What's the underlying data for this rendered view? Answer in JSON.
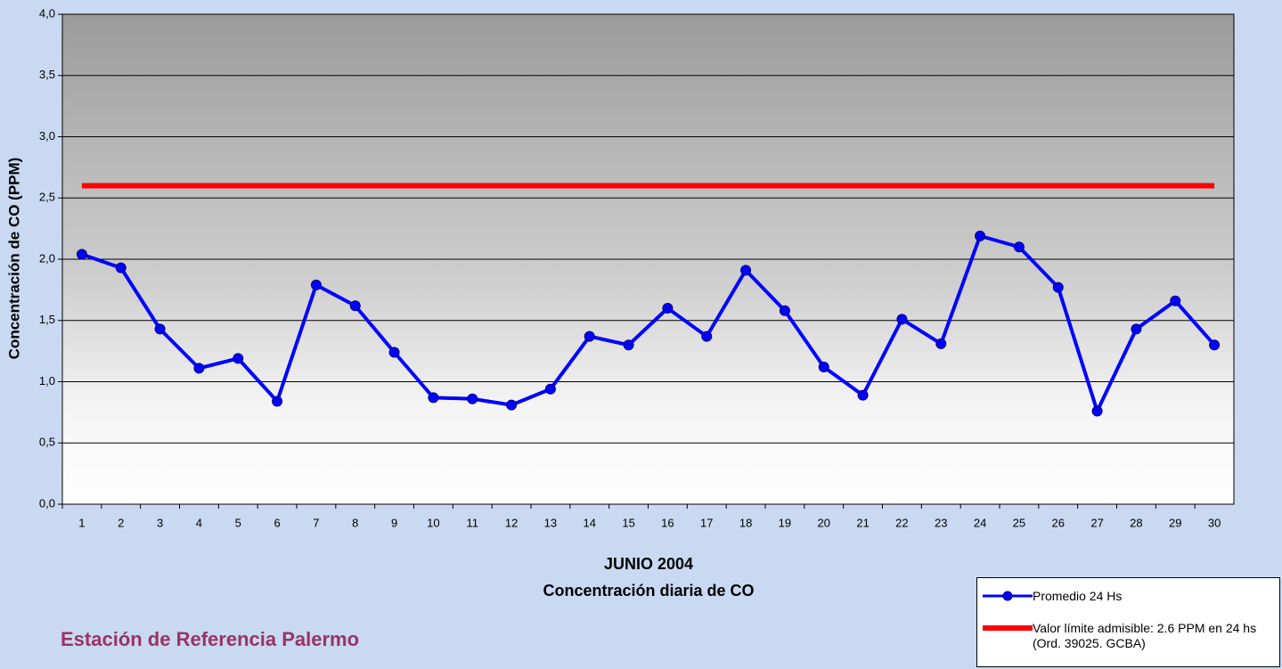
{
  "chart_data": {
    "type": "line",
    "title": "JUNIO 2004",
    "x_label": "Concentración diaria de CO",
    "y_label": "Concentración de CO (PPM)",
    "annotation": "Estación de Referencia Palermo",
    "categories": [
      1,
      2,
      3,
      4,
      5,
      6,
      7,
      8,
      9,
      10,
      11,
      12,
      13,
      14,
      15,
      16,
      17,
      18,
      19,
      20,
      21,
      22,
      23,
      24,
      25,
      26,
      27,
      28,
      29,
      30
    ],
    "series": [
      {
        "name": "Promedio 24 Hs",
        "color": "#0000ff",
        "markers": true,
        "values": [
          2.04,
          1.93,
          1.43,
          1.11,
          1.19,
          0.84,
          1.79,
          1.62,
          1.24,
          0.87,
          0.86,
          0.81,
          0.94,
          1.37,
          1.3,
          1.6,
          1.37,
          1.91,
          1.58,
          1.12,
          0.89,
          1.51,
          1.31,
          2.19,
          2.1,
          1.77,
          0.76,
          1.43,
          1.66,
          1.3
        ]
      },
      {
        "name": "Valor límite admisible: 2.6 PPM en 24 hs (Ord. 39025. GCBA)",
        "color": "#ff0000",
        "markers": false,
        "values": [
          2.6,
          2.6,
          2.6,
          2.6,
          2.6,
          2.6,
          2.6,
          2.6,
          2.6,
          2.6,
          2.6,
          2.6,
          2.6,
          2.6,
          2.6,
          2.6,
          2.6,
          2.6,
          2.6,
          2.6,
          2.6,
          2.6,
          2.6,
          2.6,
          2.6,
          2.6,
          2.6,
          2.6,
          2.6,
          2.6
        ]
      }
    ],
    "ylim": [
      0,
      4
    ],
    "yticks": [
      {
        "value": 0,
        "label": "0,0"
      },
      {
        "value": 0.5,
        "label": "0,5"
      },
      {
        "value": 1,
        "label": "1,0"
      },
      {
        "value": 1.5,
        "label": "1,5"
      },
      {
        "value": 2,
        "label": "2,0"
      },
      {
        "value": 2.5,
        "label": "2,5"
      },
      {
        "value": 3,
        "label": "3,0"
      },
      {
        "value": 3.5,
        "label": "3,5"
      },
      {
        "value": 4,
        "label": "4,0"
      }
    ],
    "grid": true,
    "legend": "bottom-right"
  }
}
